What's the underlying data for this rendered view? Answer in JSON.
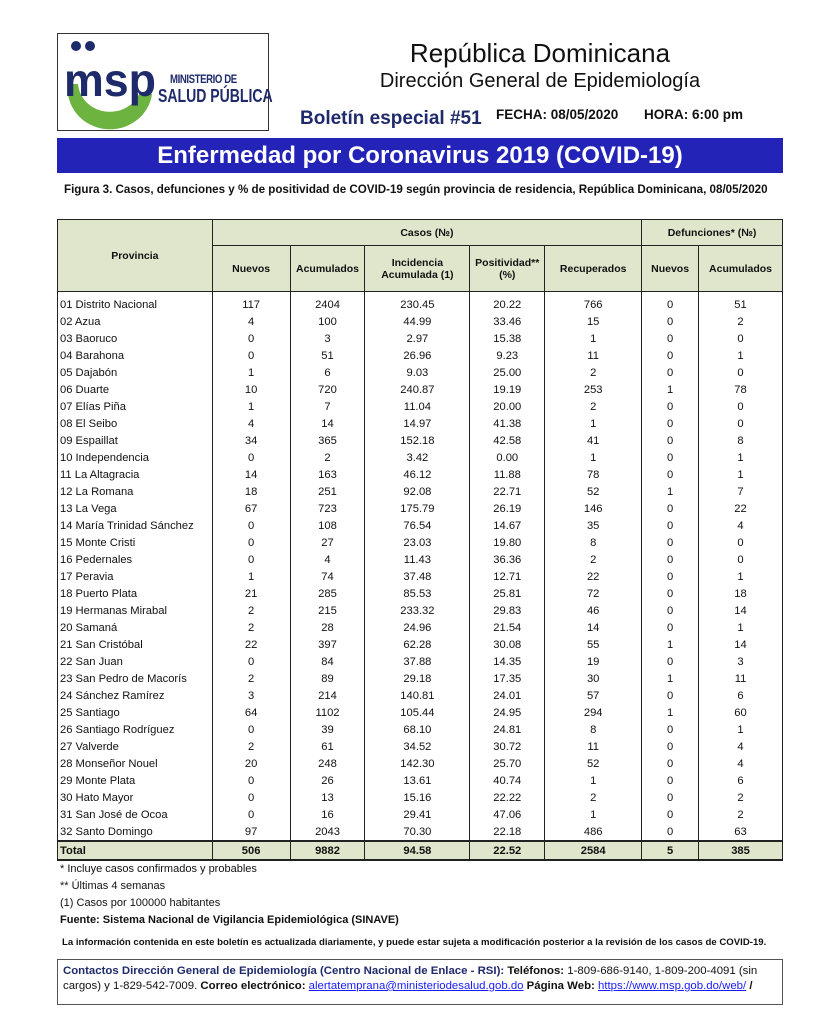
{
  "header": {
    "logo_text": "msp",
    "logo_line1": "MINISTERIO DE",
    "logo_line2": "SALUD PÚBLICA",
    "country": "República Dominicana",
    "directorate": "Dirección General de Epidemiología",
    "bulletin": "Boletín especial #51",
    "date": "FECHA: 08/05/2020",
    "time": "HORA: 6:00 pm",
    "banner": "Enfermedad por Coronavirus 2019 (COVID-19)",
    "figure_caption": "Figura 3. Casos, defunciones y % de positividad de COVID-19 según provincia de residencia, República Dominicana, 08/05/2020"
  },
  "colors": {
    "banner": "#2323b8",
    "header_fill": "#dfe6cc",
    "brand_blue": "#1f2a6b",
    "logo_green": "#6db33f"
  },
  "table": {
    "group_headers": {
      "province": "Provincia",
      "cases": "Casos (№)",
      "deaths": "Defunciones* (№)"
    },
    "columns": [
      "Nuevos",
      "Acumulados",
      "Incidencia Acumulada (1)",
      "Positividad** (%)",
      "Recuperados",
      "Nuevos",
      "Acumulados"
    ],
    "rows": [
      [
        "01 Distrito Nacional",
        "117",
        "2404",
        "230.45",
        "20.22",
        "766",
        "0",
        "51"
      ],
      [
        "02 Azua",
        "4",
        "100",
        "44.99",
        "33.46",
        "15",
        "0",
        "2"
      ],
      [
        "03 Baoruco",
        "0",
        "3",
        "2.97",
        "15.38",
        "1",
        "0",
        "0"
      ],
      [
        "04 Barahona",
        "0",
        "51",
        "26.96",
        "9.23",
        "11",
        "0",
        "1"
      ],
      [
        "05 Dajabón",
        "1",
        "6",
        "9.03",
        "25.00",
        "2",
        "0",
        "0"
      ],
      [
        "06 Duarte",
        "10",
        "720",
        "240.87",
        "19.19",
        "253",
        "1",
        "78"
      ],
      [
        "07 Elías Piña",
        "1",
        "7",
        "11.04",
        "20.00",
        "2",
        "0",
        "0"
      ],
      [
        "08 El Seibo",
        "4",
        "14",
        "14.97",
        "41.38",
        "1",
        "0",
        "0"
      ],
      [
        "09 Espaillat",
        "34",
        "365",
        "152.18",
        "42.58",
        "41",
        "0",
        "8"
      ],
      [
        "10 Independencia",
        "0",
        "2",
        "3.42",
        "0.00",
        "1",
        "0",
        "1"
      ],
      [
        "11 La Altagracia",
        "14",
        "163",
        "46.12",
        "11.88",
        "78",
        "0",
        "1"
      ],
      [
        "12 La Romana",
        "18",
        "251",
        "92.08",
        "22.71",
        "52",
        "1",
        "7"
      ],
      [
        "13 La Vega",
        "67",
        "723",
        "175.79",
        "26.19",
        "146",
        "0",
        "22"
      ],
      [
        "14 María Trinidad Sánchez",
        "0",
        "108",
        "76.54",
        "14.67",
        "35",
        "0",
        "4"
      ],
      [
        "15 Monte Cristi",
        "0",
        "27",
        "23.03",
        "19.80",
        "8",
        "0",
        "0"
      ],
      [
        "16 Pedernales",
        "0",
        "4",
        "11.43",
        "36.36",
        "2",
        "0",
        "0"
      ],
      [
        "17 Peravia",
        "1",
        "74",
        "37.48",
        "12.71",
        "22",
        "0",
        "1"
      ],
      [
        "18 Puerto Plata",
        "21",
        "285",
        "85.53",
        "25.81",
        "72",
        "0",
        "18"
      ],
      [
        "19 Hermanas Mirabal",
        "2",
        "215",
        "233.32",
        "29.83",
        "46",
        "0",
        "14"
      ],
      [
        "20 Samaná",
        "2",
        "28",
        "24.96",
        "21.54",
        "14",
        "0",
        "1"
      ],
      [
        "21 San Cristóbal",
        "22",
        "397",
        "62.28",
        "30.08",
        "55",
        "1",
        "14"
      ],
      [
        "22 San Juan",
        "0",
        "84",
        "37.88",
        "14.35",
        "19",
        "0",
        "3"
      ],
      [
        "23 San Pedro de Macorís",
        "2",
        "89",
        "29.18",
        "17.35",
        "30",
        "1",
        "11"
      ],
      [
        "24 Sánchez Ramírez",
        "3",
        "214",
        "140.81",
        "24.01",
        "57",
        "0",
        "6"
      ],
      [
        "25 Santiago",
        "64",
        "1102",
        "105.44",
        "24.95",
        "294",
        "1",
        "60"
      ],
      [
        "26 Santiago Rodríguez",
        "0",
        "39",
        "68.10",
        "24.81",
        "8",
        "0",
        "1"
      ],
      [
        "27 Valverde",
        "2",
        "61",
        "34.52",
        "30.72",
        "11",
        "0",
        "4"
      ],
      [
        "28 Monseñor Nouel",
        "20",
        "248",
        "142.30",
        "25.70",
        "52",
        "0",
        "4"
      ],
      [
        "29 Monte Plata",
        "0",
        "26",
        "13.61",
        "40.74",
        "1",
        "0",
        "6"
      ],
      [
        "30 Hato Mayor",
        "0",
        "13",
        "15.16",
        "22.22",
        "2",
        "0",
        "2"
      ],
      [
        "31 San José de Ocoa",
        "0",
        "16",
        "29.41",
        "47.06",
        "1",
        "0",
        "2"
      ],
      [
        "32 Santo Domingo",
        "97",
        "2043",
        "70.30",
        "22.18",
        "486",
        "0",
        "63"
      ]
    ],
    "total": [
      "Total",
      "506",
      "9882",
      "94.58",
      "22.52",
      "2584",
      "5",
      "385"
    ]
  },
  "notes": {
    "n1": "* Incluye casos confirmados y probables",
    "n2": "** Últimas 4 semanas",
    "n3": "(1) Casos por 100000 habitantes",
    "source": "Fuente: Sistema Nacional de Vigilancia Epidemiológica (SINAVE)",
    "disclaimer": "La información contenida en este boletín es actualizada diariamente, y puede estar sujeta a modificación posterior a la revisión de los casos de COVID-19."
  },
  "contact": {
    "title": "Contactos Dirección General de Epidemiología (Centro Nacional de Enlace - RSI):",
    "phones_label": "Teléfonos:",
    "phones": "1-809-686-9140, 1-809-200-4091 (sin cargos) y 1-829-542-7009.",
    "email_label": "Correo electrónico:",
    "email": "alertatemprana@ministeriodesalud.gob.do",
    "web_label": "Página Web:",
    "web": "https://www.msp.gob.do/web/",
    "trailing": "/"
  }
}
